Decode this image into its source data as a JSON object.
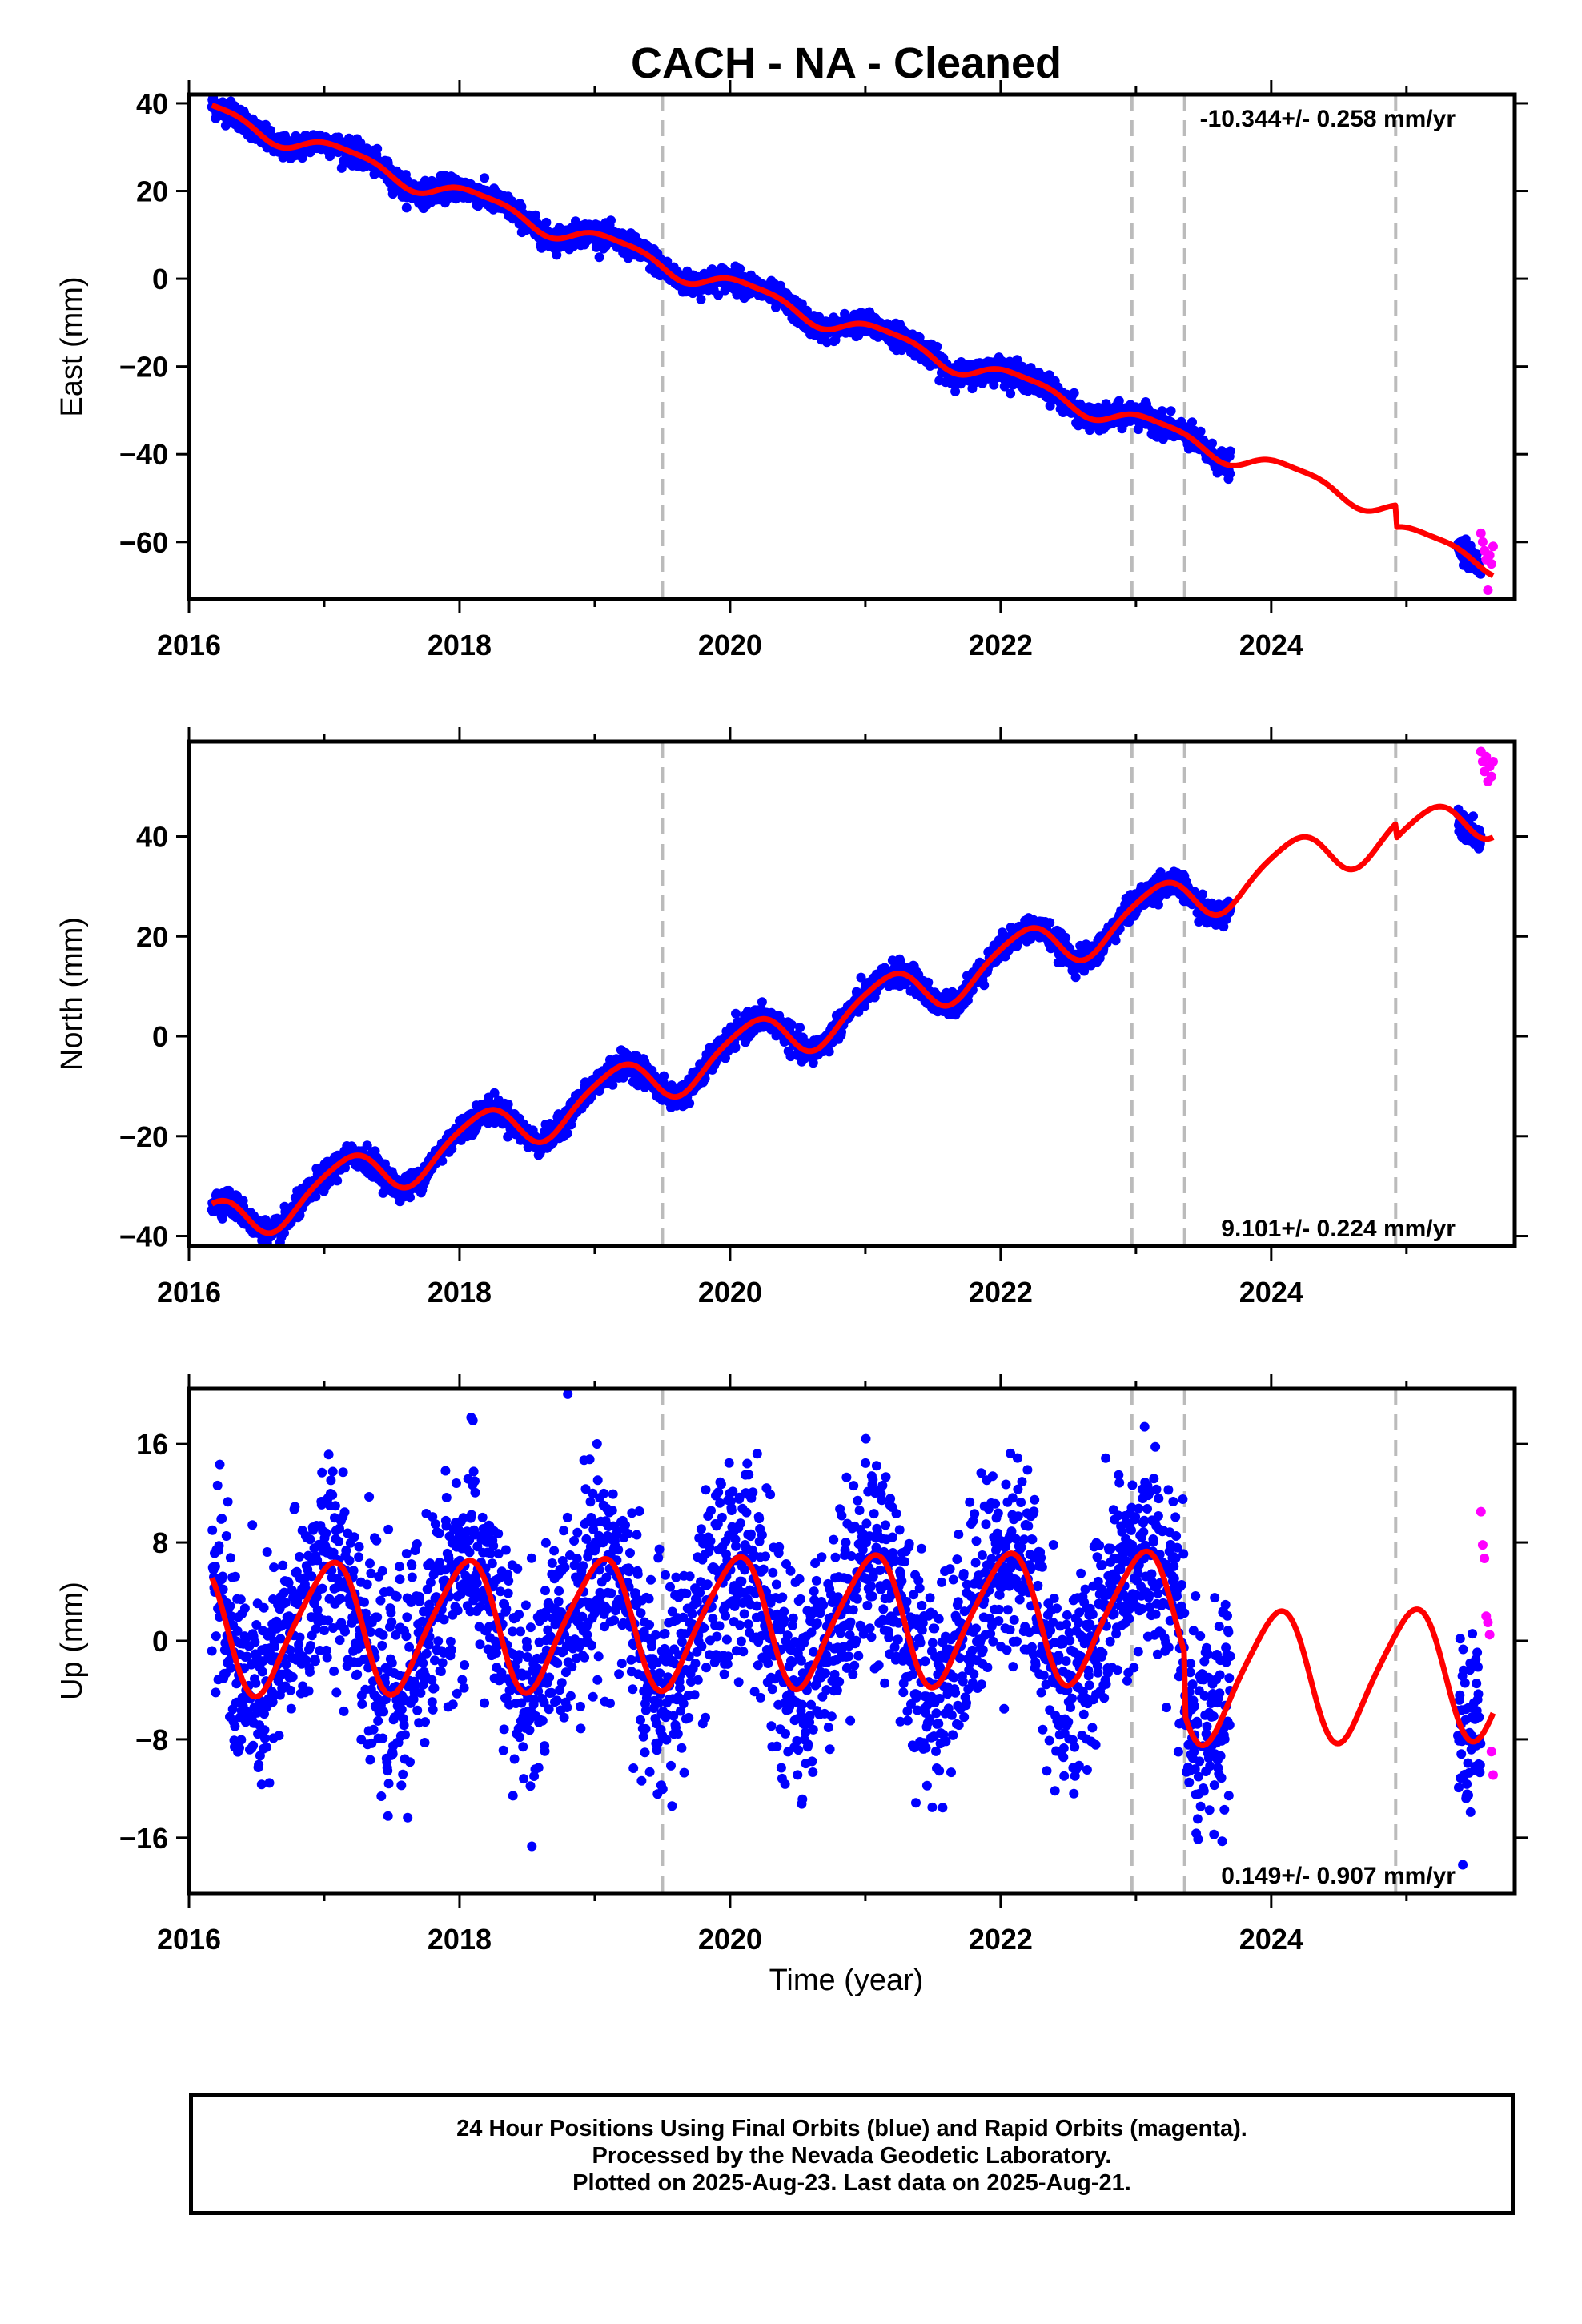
{
  "title": "CACH  - NA - Cleaned",
  "xlabel": "Time (year)",
  "footer": {
    "line1": "24 Hour Positions Using Final Orbits (blue) and Rapid Orbits (magenta).",
    "line2": "Processed by the Nevada Geodetic Laboratory.",
    "line3": "Plotted on 2025-Aug-23. Last data on 2025-Aug-21."
  },
  "colors": {
    "final_orbits": "#0000ff",
    "rapid_orbits": "#ff00ff",
    "model_fit": "#ff0000",
    "step_lines": "#bbbbbb"
  },
  "chart_data": [
    {
      "type": "scatter",
      "component": "east",
      "ylabel": "East (mm)",
      "rate_text": "-10.344+/- 0.258 mm/yr",
      "rate_position": "top-right",
      "xlim": [
        2016.0,
        2025.8
      ],
      "ylim": [
        -73,
        42
      ],
      "xticks": [
        2016,
        2018,
        2020,
        2022,
        2024
      ],
      "yticks": [
        -60,
        -40,
        -20,
        0,
        20,
        40
      ],
      "ytick_labels": [
        "−60",
        "−40",
        "−20",
        "0",
        "20",
        "40"
      ],
      "grid": false,
      "step_lines_x": [
        2019.5,
        2022.97,
        2023.36,
        2024.92
      ],
      "trend": {
        "start_x": 2016.17,
        "start_y": 38,
        "rate": -10.344,
        "offset_after_2024_92": -5
      },
      "seasonal": {
        "annual_amp": 2.2,
        "annual_phase": 0.9,
        "semiannual_amp": 0.6,
        "semiannual_phase": 0.3
      },
      "scatter": {
        "noise": 1.3
      },
      "series": [
        {
          "name": "final orbits",
          "color": "#0000ff",
          "x_start": 2016.17,
          "x_end": 2023.7
        },
        {
          "name": "final orbits",
          "color": "#0000ff",
          "x_start": 2025.38,
          "x_end": 2025.55
        },
        {
          "name": "rapid orbits",
          "color": "#ff00ff",
          "x_start": 2025.55,
          "x_end": 2025.64,
          "y_values": [
            -58,
            -60,
            -62,
            -64,
            -71,
            -63,
            -65,
            -61
          ]
        },
        {
          "name": "model fit",
          "color": "#ff0000",
          "x_start": 2016.17,
          "x_end": 2025.64
        }
      ]
    },
    {
      "type": "scatter",
      "component": "north",
      "ylabel": "North (mm)",
      "rate_text": "9.101+/- 0.224 mm/yr",
      "rate_position": "bottom-right",
      "xlim": [
        2016.0,
        2025.8
      ],
      "ylim": [
        -42,
        59
      ],
      "xticks": [
        2016,
        2018,
        2020,
        2022,
        2024
      ],
      "yticks": [
        -40,
        -20,
        0,
        20,
        40
      ],
      "ytick_labels": [
        "−40",
        "−20",
        "0",
        "20",
        "40"
      ],
      "grid": false,
      "step_lines_x": [
        2019.5,
        2022.97,
        2023.36,
        2024.92
      ],
      "trend": {
        "start_x": 2016.17,
        "start_y": -38,
        "rate": 9.101,
        "offset_after_2024_92": -3
      },
      "seasonal": {
        "annual_amp": 4.8,
        "annual_phase": 0.9,
        "semiannual_amp": 0.8,
        "semiannual_phase": 0.2
      },
      "scatter": {
        "noise": 1.2
      },
      "series": [
        {
          "name": "final orbits",
          "color": "#0000ff",
          "x_start": 2016.17,
          "x_end": 2023.7
        },
        {
          "name": "final orbits",
          "color": "#0000ff",
          "x_start": 2025.38,
          "x_end": 2025.55
        },
        {
          "name": "rapid orbits",
          "color": "#ff00ff",
          "x_start": 2025.55,
          "x_end": 2025.64,
          "y_values": [
            57,
            55,
            53,
            56,
            51,
            54,
            52,
            55
          ]
        },
        {
          "name": "model fit",
          "color": "#ff0000",
          "x_start": 2016.17,
          "x_end": 2025.64
        }
      ]
    },
    {
      "type": "scatter",
      "component": "up",
      "ylabel": "Up (mm)",
      "rate_text": "0.149+/- 0.907 mm/yr",
      "rate_position": "bottom-right",
      "xlim": [
        2016.0,
        2025.8
      ],
      "ylim": [
        -20.5,
        20.5
      ],
      "xticks": [
        2016,
        2018,
        2020,
        2022,
        2024
      ],
      "yticks": [
        -16,
        -8,
        0,
        8,
        16
      ],
      "ytick_labels": [
        "−16",
        "−8",
        "0",
        "8",
        "16"
      ],
      "grid": false,
      "step_lines_x": [
        2019.5,
        2022.97,
        2023.36,
        2024.92
      ],
      "trend": {
        "start_x": 2016.17,
        "start_y": 1.0,
        "rate": 0.149,
        "offset_after_2023_36": -5
      },
      "seasonal": {
        "annual_amp": 5.2,
        "annual_phase": 0.78,
        "semiannual_amp": 0.8,
        "semiannual_phase": 0.55
      },
      "scatter": {
        "noise": 4.2
      },
      "series": [
        {
          "name": "final orbits",
          "color": "#0000ff",
          "x_start": 2016.17,
          "x_end": 2023.7
        },
        {
          "name": "final orbits",
          "color": "#0000ff",
          "x_start": 2025.38,
          "x_end": 2025.55
        },
        {
          "name": "rapid orbits",
          "color": "#ff00ff",
          "x_start": 2025.55,
          "x_end": 2025.64,
          "y_values": [
            10.5,
            7.8,
            6.7,
            2,
            1.5,
            0.5,
            -9,
            -10.9
          ]
        },
        {
          "name": "model fit",
          "color": "#ff0000",
          "x_start": 2016.17,
          "x_end": 2025.64
        }
      ]
    }
  ]
}
